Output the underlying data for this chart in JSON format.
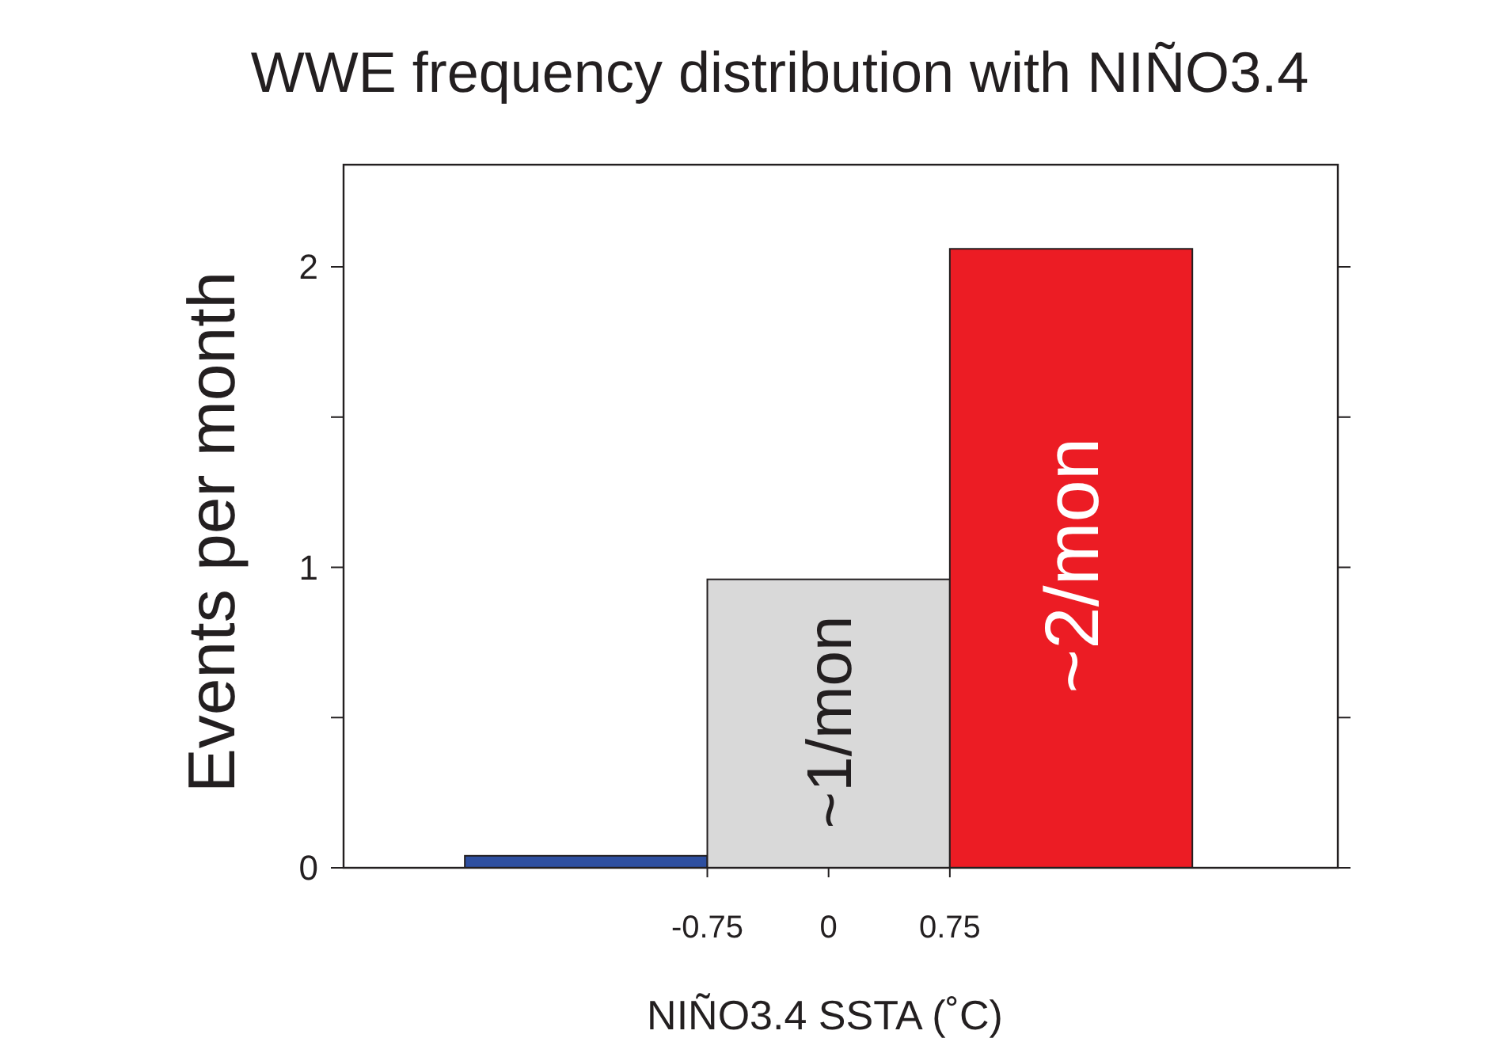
{
  "chart_data": {
    "type": "histogram",
    "title": "WWE frequency distribution with NIÑO3.4",
    "xlabel": "NIÑO3.4 SSTA (˚C)",
    "ylabel": "Events per month",
    "bins": [
      -2.25,
      -0.75,
      0.75,
      2.25
    ],
    "values": [
      0.04,
      0.96,
      2.06
    ],
    "colors": [
      "#2e4fa0",
      "#d9d9d9",
      "#ec1c24"
    ],
    "xlim": [
      -3,
      3.15
    ],
    "ylim": [
      0,
      2.34
    ],
    "xticks": [
      -0.75,
      0,
      0.75
    ],
    "yticks": [
      0,
      {
        "value": 0.5,
        "label": null
      },
      1,
      {
        "value": 1.5,
        "label": null
      },
      2
    ],
    "annotations": [
      "~1/mon",
      "~2/mon"
    ],
    "grid": false
  }
}
